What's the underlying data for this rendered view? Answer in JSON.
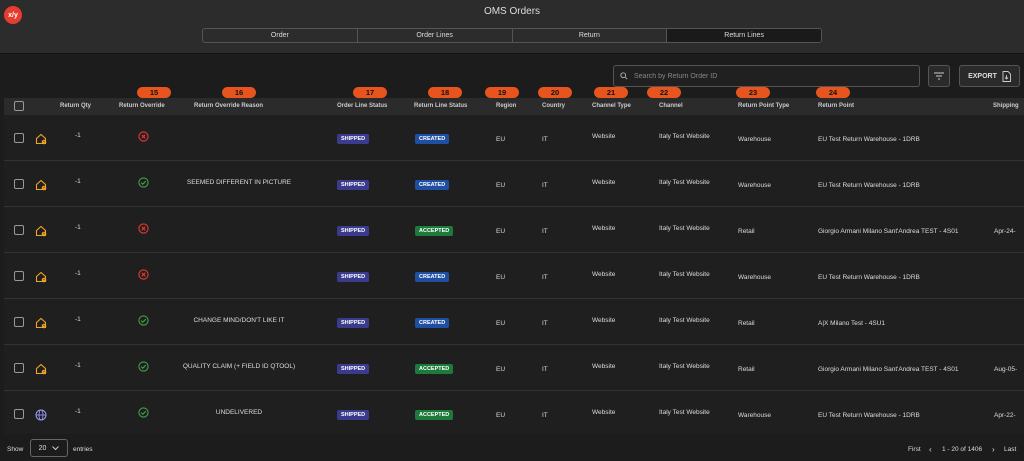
{
  "app": {
    "logo_text": "x/y",
    "title": "OMS Orders"
  },
  "tabs": [
    {
      "label": "Order",
      "active": false
    },
    {
      "label": "Order Lines",
      "active": false
    },
    {
      "label": "Return",
      "active": false
    },
    {
      "label": "Return Lines",
      "active": true
    }
  ],
  "search": {
    "placeholder": "Search by Return Order ID",
    "value": ""
  },
  "toolbar": {
    "export_label": "EXPORT"
  },
  "badges": [
    "15",
    "16",
    "17",
    "18",
    "19",
    "20",
    "21",
    "22",
    "23",
    "24"
  ],
  "columns": [
    "Return Qty",
    "Return Override",
    "Return Override Reason",
    "Order Line Status",
    "Return Line Status",
    "Region",
    "Country",
    "Channel Type",
    "Channel",
    "Return Point Type",
    "Return Point",
    "Shipping"
  ],
  "colors": {
    "shipped": "#3b3b8e",
    "created": "#1f4fa3",
    "accepted": "#1d7a3a",
    "override_no": "#e53935",
    "override_yes": "#43a047",
    "icon_warn": "#f2a521",
    "badge": "#e8541e"
  },
  "rows": [
    {
      "icon": "home-alert-icon",
      "qty": "-1",
      "override": false,
      "reason": "",
      "line_status": "SHIPPED",
      "return_status": "CREATED",
      "region": "EU",
      "country": "IT",
      "channel_type": "Website",
      "channel": "Italy Test Website",
      "rp_type": "Warehouse",
      "rp": "EU Test Return Warehouse - 1DRB",
      "shipping": ""
    },
    {
      "icon": "home-alert-icon",
      "qty": "-1",
      "override": true,
      "reason": "SEEMED DIFFERENT IN PICTURE",
      "line_status": "SHIPPED",
      "return_status": "CREATED",
      "region": "EU",
      "country": "IT",
      "channel_type": "Website",
      "channel": "Italy Test Website",
      "rp_type": "Warehouse",
      "rp": "EU Test Return Warehouse - 1DRB",
      "shipping": ""
    },
    {
      "icon": "home-alert-icon",
      "qty": "-1",
      "override": false,
      "reason": "",
      "line_status": "SHIPPED",
      "return_status": "ACCEPTED",
      "region": "EU",
      "country": "IT",
      "channel_type": "Website",
      "channel": "Italy Test Website",
      "rp_type": "Retail",
      "rp": "Giorgio Armani Milano Sant'Andrea TEST - 4S01",
      "shipping": "Apr-24-"
    },
    {
      "icon": "home-alert-icon",
      "qty": "-1",
      "override": false,
      "reason": "",
      "line_status": "SHIPPED",
      "return_status": "CREATED",
      "region": "EU",
      "country": "IT",
      "channel_type": "Website",
      "channel": "Italy Test Website",
      "rp_type": "Warehouse",
      "rp": "EU Test Return Warehouse - 1DRB",
      "shipping": ""
    },
    {
      "icon": "home-alert-icon",
      "qty": "-1",
      "override": true,
      "reason": "CHANGE MIND/DON'T LIKE IT",
      "line_status": "SHIPPED",
      "return_status": "CREATED",
      "region": "EU",
      "country": "IT",
      "channel_type": "Website",
      "channel": "Italy Test Website",
      "rp_type": "Retail",
      "rp": "A|X Milano Test - 4SU1",
      "shipping": ""
    },
    {
      "icon": "home-alert-icon",
      "qty": "-1",
      "override": true,
      "reason": "QUALITY CLAIM (+ FIELD ID QTOOL)",
      "line_status": "SHIPPED",
      "return_status": "ACCEPTED",
      "region": "EU",
      "country": "IT",
      "channel_type": "Website",
      "channel": "Italy Test Website",
      "rp_type": "Retail",
      "rp": "Giorgio Armani Milano Sant'Andrea TEST - 4S01",
      "shipping": "Aug-05-"
    },
    {
      "icon": "globe-icon",
      "qty": "-1",
      "override": true,
      "reason": "UNDELIVERED",
      "line_status": "SHIPPED",
      "return_status": "ACCEPTED",
      "region": "EU",
      "country": "IT",
      "channel_type": "Website",
      "channel": "Italy Test Website",
      "rp_type": "Warehouse",
      "rp": "EU Test Return Warehouse - 1DRB",
      "shipping": "Apr-22-"
    }
  ],
  "footer": {
    "show_label": "Show",
    "page_size": "20",
    "entries_label": "entries",
    "first": "First",
    "range": "1 - 20 of 1406",
    "last": "Last"
  }
}
